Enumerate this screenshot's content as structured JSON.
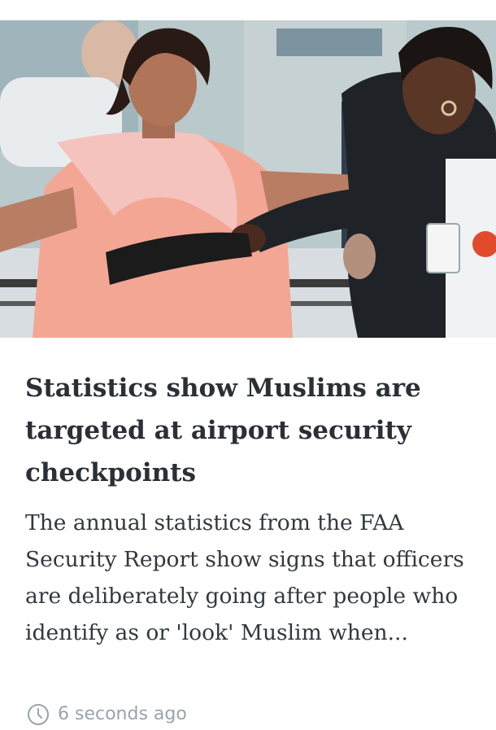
{
  "article": {
    "image_alt": "",
    "headline": "Statistics show Muslims are targeted at airport security checkpoints",
    "summary": "The annual statistics from the FAA Security Report show signs that officers are deliberately going after people who identify as or 'look' Muslim when...",
    "timestamp": "6 seconds ago",
    "timestamp_icon": "clock-icon"
  },
  "colors": {
    "headline": "#2b2f36",
    "summary": "#333840",
    "timestamp": "#9aa3ad",
    "background": "#ffffff"
  }
}
